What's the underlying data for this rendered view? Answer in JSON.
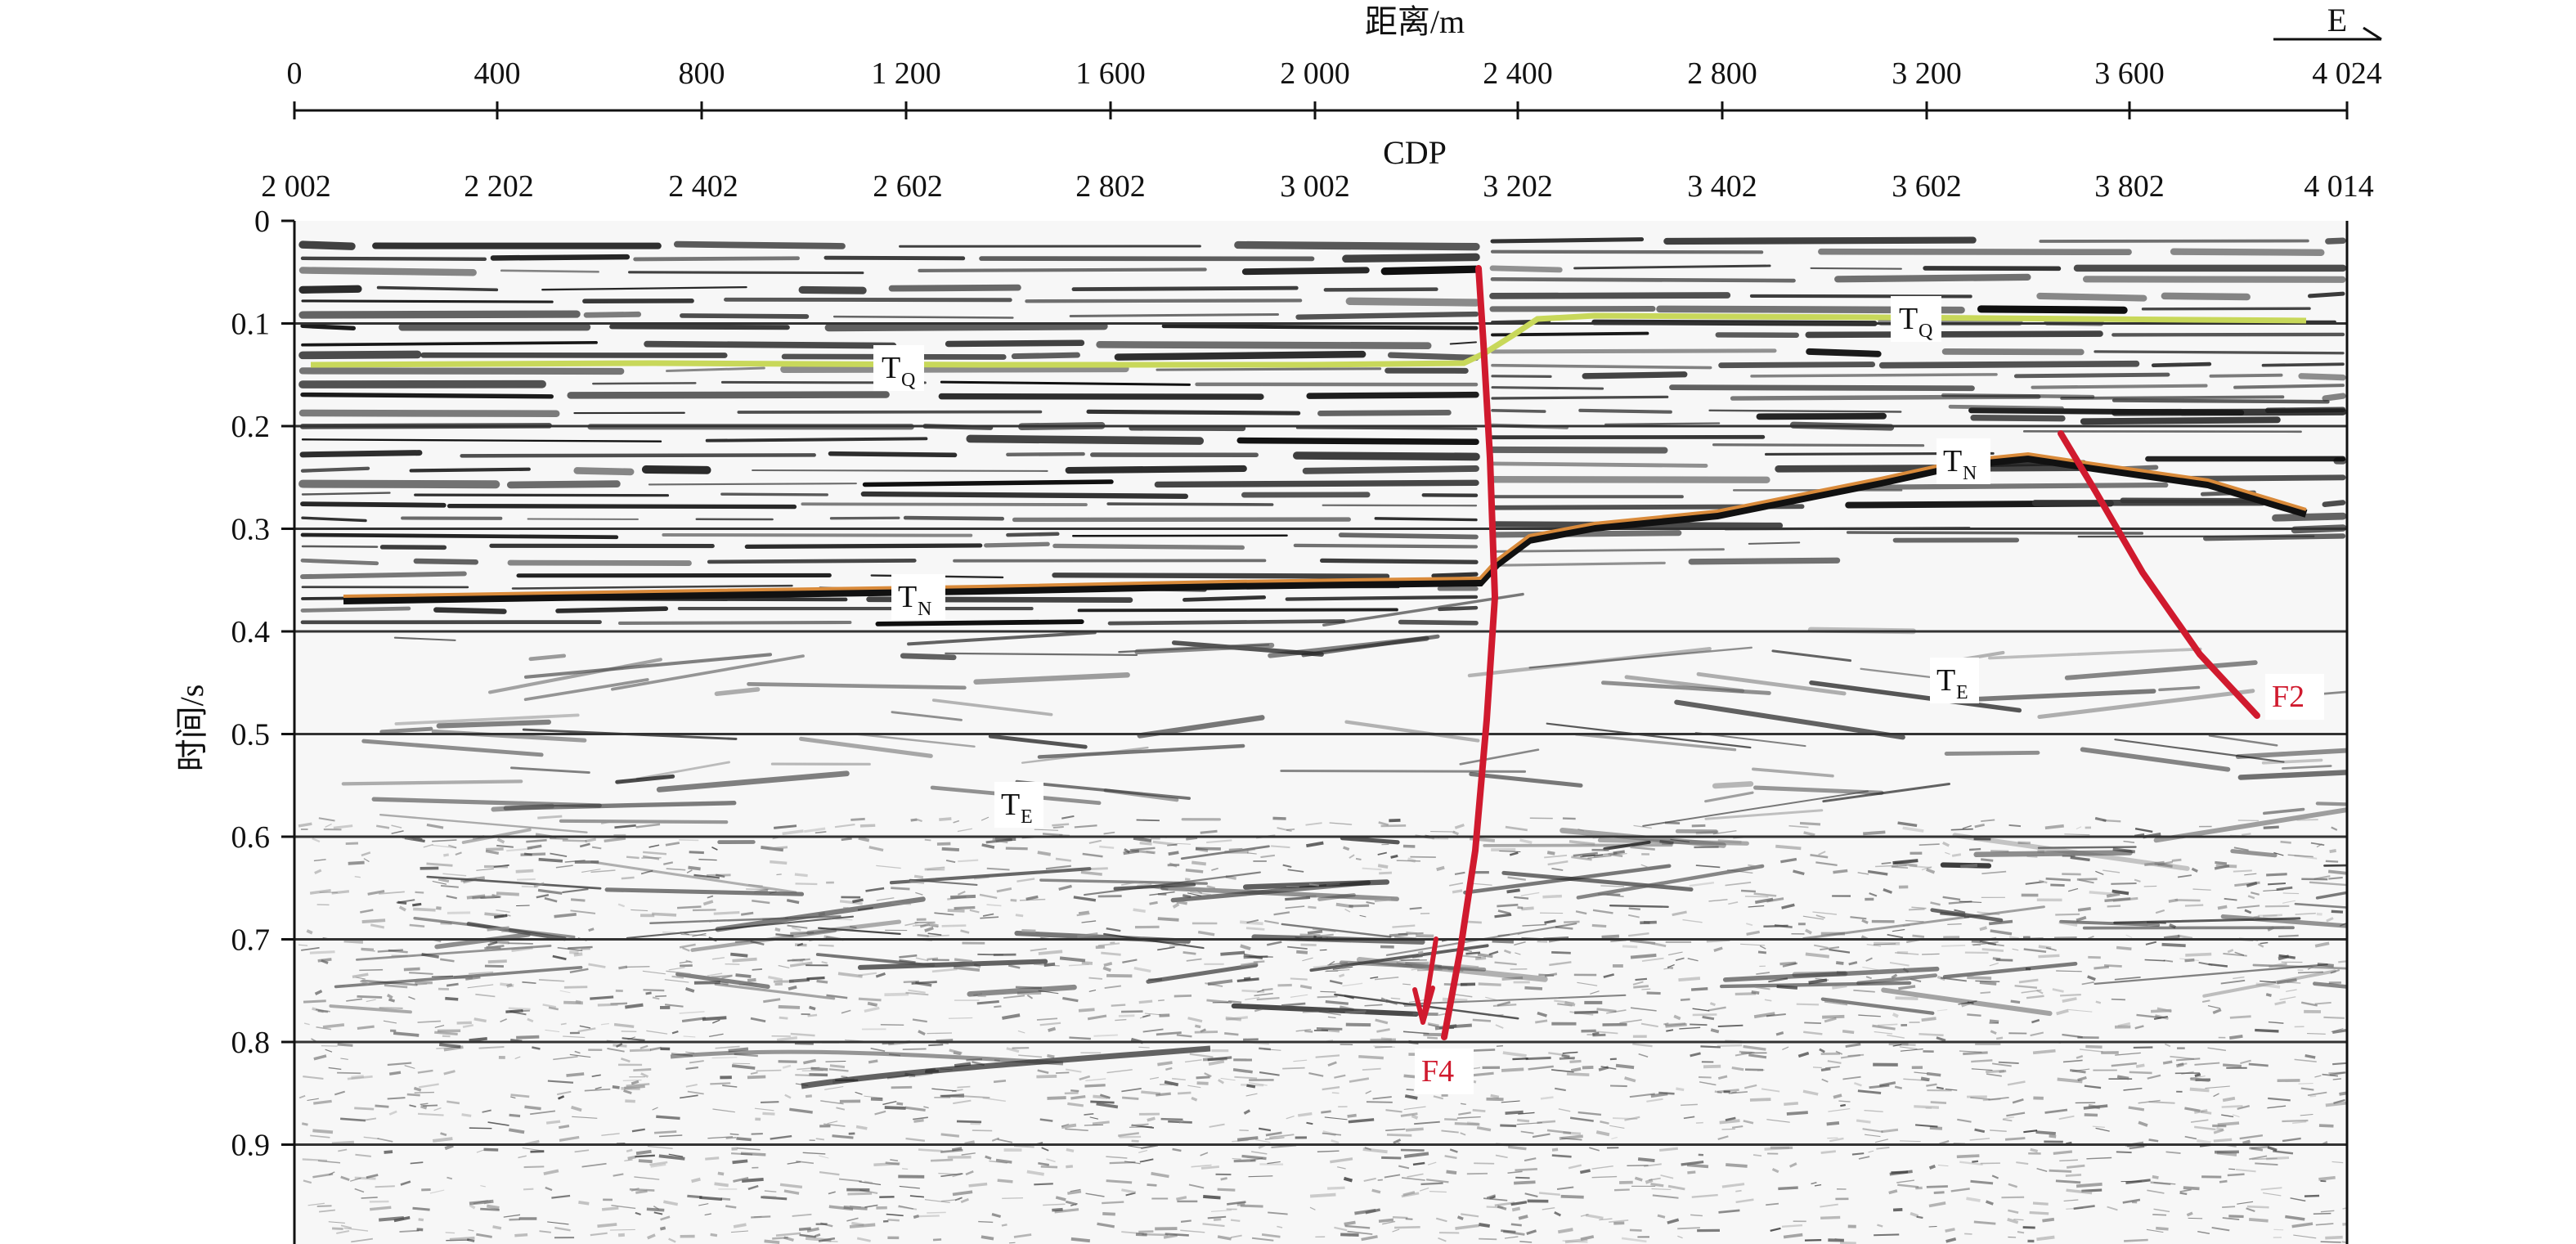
{
  "top_axis": {
    "title": "距离/m",
    "direction": "E",
    "ticks": [
      "0",
      "400",
      "800",
      "1 200",
      "1 600",
      "2 000",
      "2 400",
      "2 800",
      "3 200",
      "3 600",
      "4 024"
    ]
  },
  "cdp_axis": {
    "title": "CDP",
    "ticks": [
      "2 002",
      "2 202",
      "2 402",
      "2 602",
      "2 802",
      "3 002",
      "3 202",
      "3 402",
      "3 602",
      "3 802",
      "4 014"
    ]
  },
  "left_axis": {
    "title": "时间/s",
    "ticks": [
      "0",
      "0.1",
      "0.2",
      "0.3",
      "0.4",
      "0.5",
      "0.6",
      "0.7",
      "0.8",
      "0.9"
    ]
  },
  "horizons": [
    {
      "name": "T",
      "sub": "Q",
      "color": "#c8d85a"
    },
    {
      "name": "T",
      "sub": "Q",
      "color": "#c8d85a"
    },
    {
      "name": "T",
      "sub": "N",
      "color": "#d98a3a"
    },
    {
      "name": "T",
      "sub": "N",
      "color": "#d98a3a"
    },
    {
      "name": "T",
      "sub": "E"
    },
    {
      "name": "T",
      "sub": "E"
    }
  ],
  "faults": [
    {
      "label": "F4",
      "color": "#d01a2e"
    },
    {
      "label": "F2",
      "color": "#d01a2e"
    }
  ]
}
